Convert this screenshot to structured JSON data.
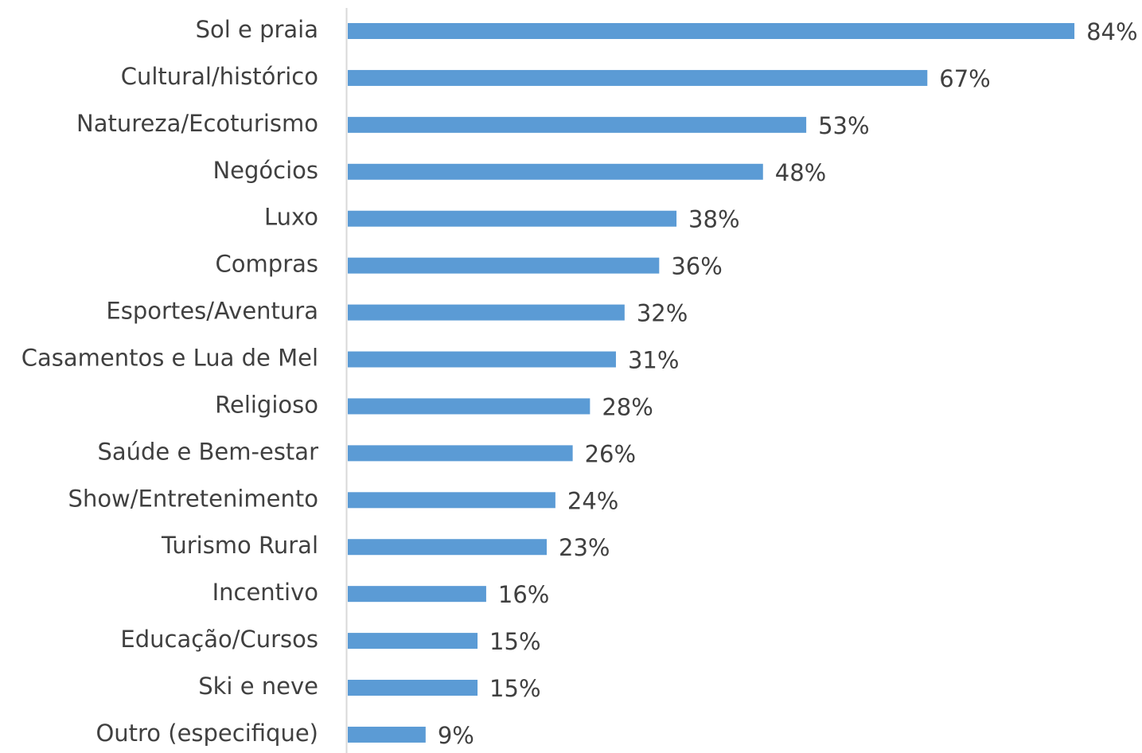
{
  "chart_data": {
    "type": "bar",
    "orientation": "horizontal",
    "categories": [
      "Sol e praia",
      "Cultural/histórico",
      "Natureza/Ecoturismo",
      "Negócios",
      "Luxo",
      "Compras",
      "Esportes/Aventura",
      "Casamentos e Lua de Mel",
      "Religioso",
      "Saúde e Bem-estar",
      "Show/Entretenimento",
      "Turismo Rural",
      "Incentivo",
      "Educação/Cursos",
      "Ski e neve",
      "Outro (especifique)"
    ],
    "values": [
      84,
      67,
      53,
      48,
      38,
      36,
      32,
      31,
      28,
      26,
      24,
      23,
      16,
      15,
      15,
      9
    ],
    "value_labels": [
      "84%",
      "67%",
      "53%",
      "48%",
      "38%",
      "36%",
      "32%",
      "31%",
      "28%",
      "26%",
      "24%",
      "23%",
      "16%",
      "15%",
      "15%",
      "9%"
    ],
    "color": "#5b9bd5"
  }
}
